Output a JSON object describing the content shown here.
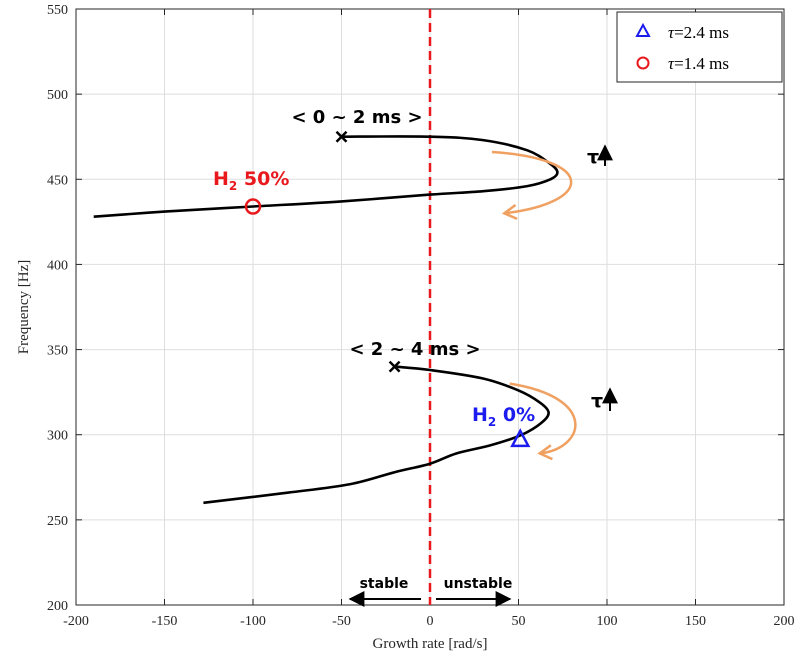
{
  "chart_data": {
    "type": "line",
    "xlabel": "Growth rate [rad/s]",
    "ylabel": "Frequency [Hz]",
    "xlim": [
      -200,
      200
    ],
    "ylim": [
      200,
      550
    ],
    "xticks": [
      -200,
      -150,
      -100,
      -50,
      0,
      50,
      100,
      150,
      200
    ],
    "yticks": [
      200,
      250,
      300,
      350,
      400,
      450,
      500,
      550
    ],
    "grid": true,
    "legend_position": "top-right",
    "series": [
      {
        "label": "< 0 ~ 2 ms >",
        "color": "#000000",
        "points": [
          [
            -50,
            475
          ],
          [
            0,
            475
          ],
          [
            30,
            473
          ],
          [
            55,
            467
          ],
          [
            68,
            459
          ],
          [
            72,
            454
          ],
          [
            68,
            450
          ],
          [
            55,
            446
          ],
          [
            30,
            443
          ],
          [
            0,
            441
          ],
          [
            -50,
            437
          ],
          [
            -100,
            434
          ],
          [
            -150,
            431
          ],
          [
            -190,
            428
          ]
        ]
      },
      {
        "label": "< 2 ~ 4 ms >",
        "color": "#000000",
        "points": [
          [
            -20,
            340
          ],
          [
            0,
            338
          ],
          [
            30,
            333
          ],
          [
            50,
            326
          ],
          [
            62,
            319
          ],
          [
            67,
            313
          ],
          [
            63,
            307
          ],
          [
            52,
            300
          ],
          [
            35,
            294
          ],
          [
            15,
            289
          ],
          [
            0,
            283
          ],
          [
            -20,
            278
          ],
          [
            -45,
            271
          ],
          [
            -80,
            266
          ],
          [
            -128,
            260
          ]
        ]
      }
    ],
    "markers": [
      {
        "shape": "cross",
        "x": -50,
        "y": 475,
        "color": "#000000"
      },
      {
        "shape": "cross",
        "x": -20,
        "y": 340,
        "color": "#000000"
      },
      {
        "shape": "circle",
        "x": -100,
        "y": 434,
        "color": "#e8181c"
      },
      {
        "shape": "triangle",
        "x": 51,
        "y": 297,
        "color": "#1c1cf0"
      }
    ],
    "annotations": {
      "label_top": "< 0 ~ 2 ms >",
      "label_bottom": "< 2 ~ 4 ms >",
      "h2_top": {
        "base": "H",
        "sub": "2",
        "rest": " 50%"
      },
      "h2_bottom": {
        "base": "H",
        "sub": "2",
        "rest": " 0%"
      },
      "tau_symbol": "τ",
      "stable": "stable",
      "unstable": "unstable"
    },
    "legend": [
      {
        "shape": "triangle",
        "color": "#1c1cf0",
        "symbol": "τ",
        "text": "=2.4 ms"
      },
      {
        "shape": "circle",
        "color": "#e8181c",
        "symbol": "τ",
        "text": "=1.4 ms"
      }
    ],
    "reference_line": {
      "x": 0,
      "color": "#e8181c",
      "style": "dashed"
    },
    "arrow_color": "#f0a060"
  }
}
